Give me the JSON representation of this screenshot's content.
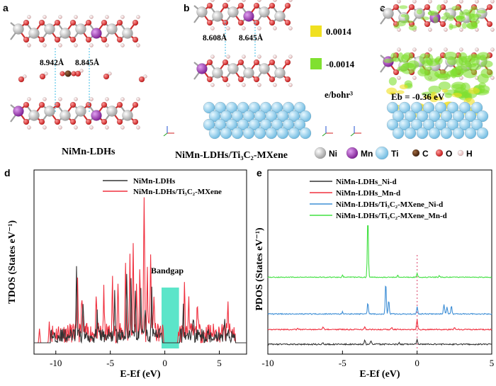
{
  "colors": {
    "ni": "#b4b4b4",
    "mn": "#9a2fb0",
    "ti": "#8fd0f0",
    "c": "#5a2e12",
    "o": "#e02020",
    "h": "#f2c8c8",
    "isoPos": "#f0e020",
    "isoNeg": "#80e030",
    "black": "#333333",
    "red": "#f0303f",
    "blue": "#3f8fd6",
    "green": "#40e040",
    "bandgap": "#40e0c0"
  },
  "panel_a": {
    "letter": "a",
    "d1": "8.942Å",
    "d2": "8.845Å",
    "caption": "NiMn-LDHs"
  },
  "panel_b": {
    "letter": "b",
    "d1": "8.608Å",
    "d2": "8.645Å",
    "caption": "NiMn-LDHs/Ti₃C₂-MXene",
    "iso_pos": "0.0014",
    "iso_neg": "-0.0014",
    "iso_unit": "e/bohr³"
  },
  "panel_c": {
    "letter": "c",
    "eb": "Eb = -0.36 eV"
  },
  "element_legend": [
    "Ni",
    "Mn",
    "Ti",
    "C",
    "O",
    "H"
  ],
  "chart_data": [
    {
      "id": "d",
      "type": "line",
      "letter": "d",
      "xlabel": "E-Ef (eV)",
      "ylabel": "TDOS (States eV⁻¹)",
      "xlim": [
        -12,
        7.5
      ],
      "xticks": [
        -10,
        -5,
        0,
        5
      ],
      "annotation": "Bandgap",
      "bandgap_range_ev": [
        -0.3,
        1.3
      ],
      "series": [
        {
          "name": "NiMn-LDHs",
          "color": "#333333"
        },
        {
          "name": "NiMn-LDHs/Ti₃C₂-MXene",
          "color": "#f0303f"
        }
      ]
    },
    {
      "id": "e",
      "type": "line",
      "letter": "e",
      "xlabel": "E-Ef (eV)",
      "ylabel": "PDOS (States eV⁻¹)",
      "xlim": [
        -10,
        5
      ],
      "xticks": [
        -10,
        -5,
        0,
        5
      ],
      "fermi_level_ev": 0,
      "series": [
        {
          "name": "NiMn-LDHs_Ni-d",
          "color": "#333333"
        },
        {
          "name": "NiMn-LDHs_Mn-d",
          "color": "#f0303f"
        },
        {
          "name": "NiMn-LDHs/Ti₃C₂-MXene_Ni-d",
          "color": "#3f8fd6"
        },
        {
          "name": "NiMn-LDHs/Ti₃C₂-MXene_Mn-d",
          "color": "#40e040"
        }
      ],
      "peaks_ev": {
        "NiMn-LDHs/Ti₃C₂-MXene_Mn-d": [
          -3.3
        ],
        "NiMn-LDHs/Ti₃C₂-MXene_Ni-d": [
          -3.3,
          -2.1,
          1.9,
          2.3
        ]
      }
    }
  ]
}
